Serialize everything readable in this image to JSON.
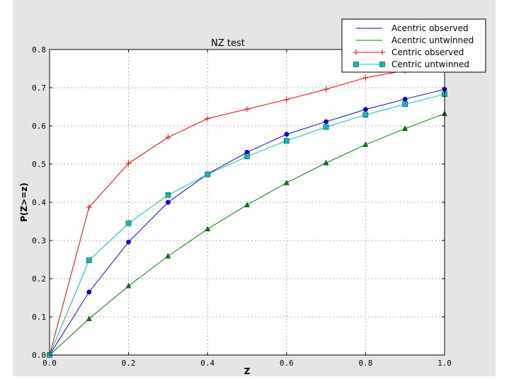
{
  "chart_data": {
    "type": "line",
    "title": "NZ test",
    "xlabel": "Z",
    "ylabel": "P(Z>=z)",
    "xlim": [
      0,
      1.0
    ],
    "ylim": [
      0,
      0.8
    ],
    "xticks": [
      "0.0",
      "0.2",
      "0.4",
      "0.6",
      "0.8",
      "1.0"
    ],
    "yticks": [
      "0.0",
      "0.1",
      "0.2",
      "0.3",
      "0.4",
      "0.5",
      "0.6",
      "0.7",
      "0.8"
    ],
    "grid": true,
    "legend_placement": "top-right",
    "x": [
      0,
      0.1,
      0.2,
      0.3,
      0.4,
      0.5,
      0.6,
      0.7,
      0.8,
      0.9,
      1.0
    ],
    "series": [
      {
        "name": "Acentric observed",
        "color": "#0000ff",
        "marker": "circle",
        "legend_marker": "none",
        "values": [
          0,
          0.165,
          0.296,
          0.4,
          0.474,
          0.531,
          0.578,
          0.611,
          0.643,
          0.67,
          0.696
        ]
      },
      {
        "name": "Acentric untwinned",
        "color": "#008000",
        "marker": "triangle",
        "legend_marker": "none",
        "values": [
          0,
          0.095,
          0.181,
          0.259,
          0.33,
          0.393,
          0.451,
          0.503,
          0.551,
          0.593,
          0.632
        ]
      },
      {
        "name": "Centric observed",
        "color": "#ff0000",
        "marker": "plus",
        "legend_marker": "plus",
        "values": [
          0,
          0.387,
          0.502,
          0.57,
          0.619,
          0.644,
          0.669,
          0.696,
          0.726,
          0.745,
          0.77
        ]
      },
      {
        "name": "Centric untwinned",
        "color": "#00bfbf",
        "marker": "square",
        "legend_marker": "square",
        "values": [
          0,
          0.248,
          0.345,
          0.419,
          0.473,
          0.52,
          0.561,
          0.597,
          0.629,
          0.657,
          0.683
        ]
      }
    ]
  }
}
